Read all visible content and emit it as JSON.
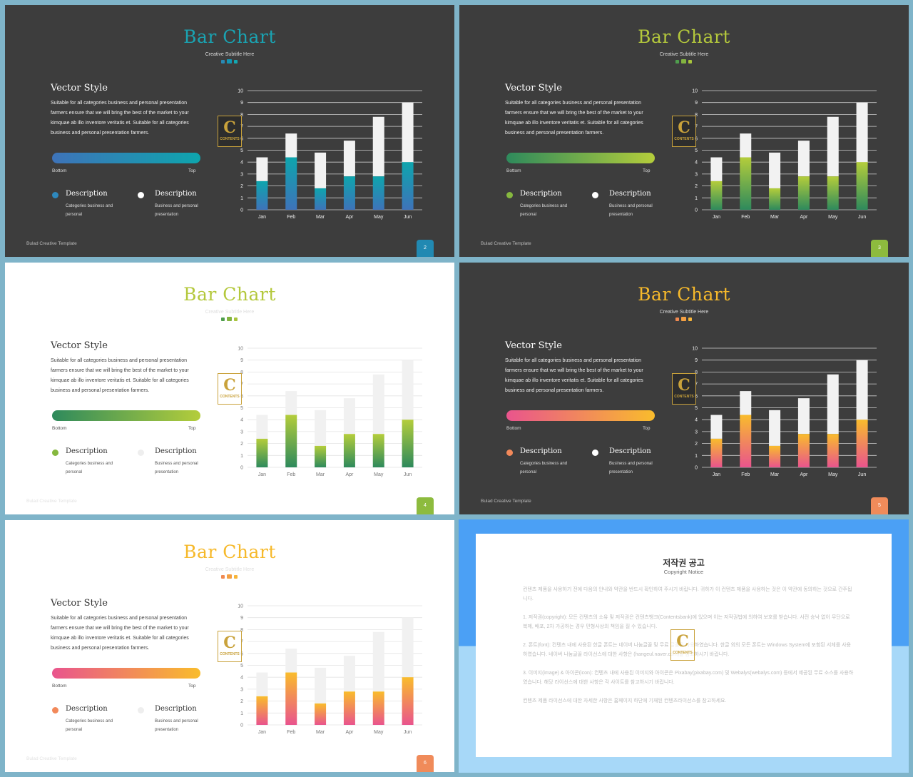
{
  "slides": [
    {
      "theme": "dark",
      "title": "Bar Chart",
      "subtitle": "Creative Subtitle Here",
      "heading": "Vector Style",
      "paragraph": "Suitable for all categories business and personal presentation farmers ensure that we will bring the best of the market to your kimquae ab illo inventore veritatis et. Suitable for all categories business and personal presentation farmers.",
      "gradient_bottom_label": "Bottom",
      "gradient_top_label": "Top",
      "legend": [
        {
          "title": "Description",
          "text": "Categories business and personal"
        },
        {
          "title": "Description",
          "text": "Business and personal presentation"
        }
      ],
      "footer": "Bulad Creative Template",
      "page_number": "2",
      "colors": {
        "title": "#1aa3b2",
        "start": "#3e73b9",
        "end": "#0ea5ad",
        "dots": [
          "#2a8ab5",
          "#1396b5",
          "#13a9b2"
        ],
        "legend_dot": "#2e88bd",
        "legend_dot2": "#ffffff",
        "page_bg": "#2189b2",
        "grid": "#cfcfcf",
        "axis_text": "#eeeeee",
        "top_bar": "#f2f2f2"
      }
    },
    {
      "theme": "dark",
      "title": "Bar Chart",
      "subtitle": "Creative Subtitle Here",
      "heading": "Vector Style",
      "paragraph": "Suitable for all categories business and personal presentation farmers ensure that we will bring the best of the market to your kimquae ab illo inventore veritatis et. Suitable for all categories business and personal presentation farmers.",
      "gradient_bottom_label": "Bottom",
      "gradient_top_label": "Top",
      "legend": [
        {
          "title": "Description",
          "text": "Categories business and personal"
        },
        {
          "title": "Description",
          "text": "Business and personal presentation"
        }
      ],
      "footer": "Bulad Creative Template",
      "page_number": "3",
      "colors": {
        "title": "#b4c83c",
        "start": "#2e8a5c",
        "end": "#b4cd3b",
        "dots": [
          "#4f9e4d",
          "#83b440",
          "#a8c43c"
        ],
        "legend_dot": "#86b83f",
        "legend_dot2": "#ffffff",
        "page_bg": "#8dbb3e",
        "grid": "#cfcfcf",
        "axis_text": "#eeeeee",
        "top_bar": "#f2f2f2"
      }
    },
    {
      "theme": "light",
      "title": "Bar Chart",
      "subtitle": "Creative Subtitle Here",
      "heading": "Vector Style",
      "paragraph": "Suitable for all categories business and personal presentation farmers ensure that we will bring the best of the market to your kimquae ab illo inventore veritatis et. Suitable for all categories business and personal presentation farmers.",
      "gradient_bottom_label": "Bottom",
      "gradient_top_label": "Top",
      "legend": [
        {
          "title": "Description",
          "text": "Categories business and personal"
        },
        {
          "title": "Description",
          "text": "Business and personal presentation"
        }
      ],
      "footer": "Bulad Creative Template",
      "page_number": "4",
      "colors": {
        "title": "#b4c83c",
        "start": "#2e8a5c",
        "end": "#b4cd3b",
        "dots": [
          "#4f9e4d",
          "#83b440",
          "#a8c43c"
        ],
        "legend_dot": "#86b83f",
        "legend_dot2": "#eeeeee",
        "page_bg": "#8dbb3e",
        "grid": "#e3e3e3",
        "axis_text": "#777777",
        "top_bar": "#f1f1f1"
      }
    },
    {
      "theme": "dark",
      "title": "Bar Chart",
      "subtitle": "Creative Subtitle Here",
      "heading": "Vector Style",
      "paragraph": "Suitable for all categories business and personal presentation farmers ensure that we will bring the best of the market to your kimquae ab illo inventore veritatis et. Suitable for all categories business and personal presentation farmers.",
      "gradient_bottom_label": "Bottom",
      "gradient_top_label": "Top",
      "legend": [
        {
          "title": "Description",
          "text": "Categories business and personal"
        },
        {
          "title": "Description",
          "text": "Business and personal presentation"
        }
      ],
      "footer": "Bulad Creative Template",
      "page_number": "5",
      "colors": {
        "title": "#f6b92b",
        "start": "#e9548d",
        "end": "#f9bc2c",
        "dots": [
          "#f08a52",
          "#f4a043",
          "#f7b53a"
        ],
        "legend_dot": "#f2895a",
        "legend_dot2": "#ffffff",
        "page_bg": "#f08b5a",
        "grid": "#cfcfcf",
        "axis_text": "#eeeeee",
        "top_bar": "#f2f2f2"
      }
    },
    {
      "theme": "light",
      "title": "Bar Chart",
      "subtitle": "Creative Subtitle Here",
      "heading": "Vector Style",
      "paragraph": "Suitable for all categories business and personal presentation farmers ensure that we will bring the best of the market to your kimquae ab illo inventore veritatis et. Suitable for all categories business and personal presentation farmers.",
      "gradient_bottom_label": "Bottom",
      "gradient_top_label": "Top",
      "legend": [
        {
          "title": "Description",
          "text": "Categories business and personal"
        },
        {
          "title": "Description",
          "text": "Business and personal presentation"
        }
      ],
      "footer": "Bulad Creative Template",
      "page_number": "6",
      "colors": {
        "title": "#f6b92b",
        "start": "#e9548d",
        "end": "#f9bc2c",
        "dots": [
          "#f08a52",
          "#f4a043",
          "#f7b53a"
        ],
        "legend_dot": "#f2895a",
        "legend_dot2": "#eeeeee",
        "page_bg": "#f08b5a",
        "grid": "#e3e3e3",
        "axis_text": "#777777",
        "top_bar": "#f1f1f1"
      }
    }
  ],
  "logo": {
    "letter": "C",
    "text": "CONTENTS"
  },
  "chart_data": {
    "type": "bar",
    "stacked": true,
    "categories": [
      "Jan",
      "Feb",
      "Mar",
      "Apr",
      "May",
      "Jun"
    ],
    "series": [
      {
        "values": [
          2.4,
          4.4,
          1.8,
          2.8,
          2.8,
          4.0
        ]
      },
      {
        "values": [
          2.0,
          2.0,
          3.0,
          3.0,
          5.0,
          5.0
        ]
      }
    ],
    "ylim": [
      0,
      10
    ],
    "yticks": [
      0,
      1,
      2,
      3,
      4,
      5,
      6,
      7,
      8,
      9,
      10
    ],
    "grid": true
  },
  "copyright": {
    "title": "저작권 공고",
    "subtitle": "Copyright Notice",
    "paragraphs": [
      "컨텐츠 제품을 사용하기 전에 다음의 안내와 약관을 반드시 확인하여 주시기 바랍니다. 귀하가 이 컨텐츠 제품을 사용하는 것은 이 약관에 동의하는 것으로 간주됩니다.",
      "1. 저작권(copyright): 모든 컨텐츠의 소유 및 저작권은 컨텐츠뱅크(Contentsbank)에 있으며 이는 저작권법에 의하여 보호를 받습니다. 사전 승낙 없이 무단으로 복제, 배포, 2차 가공하는 경우 민형사상의 책임을 질 수 있습니다.",
      "2. 폰트(font): 컨텐츠 내에 사용된 한글 폰트는 네이버 나눔글꼴 및 무료 글꼴을 사용하였습니다. 한글 외의 모든 폰트는 Windows System에 포함된 서체를 사용하였습니다. 네이버 나눔글꼴 라이선스에 대한 사항은 (hangeul.naver.com)을 참고하시기 바랍니다.",
      "3. 이미지(image) & 아이콘(icon): 컨텐츠 내에 사용된 이미지와 아이콘은 Pixabay(pixabay.com) 및 Webalys(webalys.com) 등에서 제공된 무료 소스를 사용하였습니다. 해당 라이선스에 대한 사항은 각 사이트를 참고하시기 바랍니다.",
      "컨텐츠 제품 라이선스에 대한 자세한 사항은 홈페이지 하단에 기재된 컨텐츠라이선스를 참고하세요."
    ]
  }
}
